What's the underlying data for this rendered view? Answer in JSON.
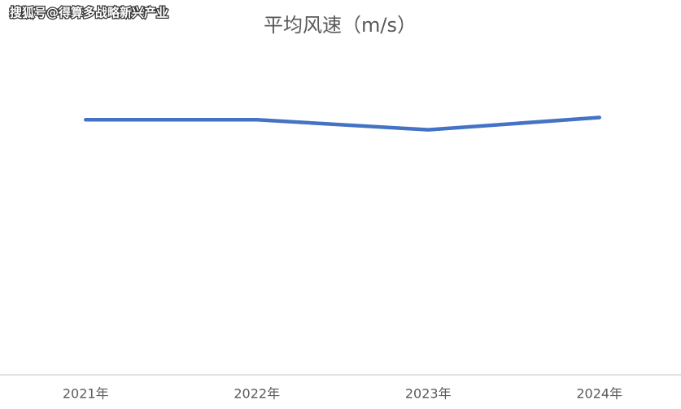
{
  "watermark": "搜狐号@得算多战略新兴产业",
  "chart_data": {
    "type": "line",
    "title": "平均风速（m/s）",
    "categories": [
      "2021年",
      "2022年",
      "2023年",
      "2024年"
    ],
    "series": [
      {
        "color": "#4472c4",
        "values": [
          2.29,
          2.29,
          2.2,
          2.31
        ]
      }
    ],
    "ylim": [
      0,
      3
    ]
  }
}
